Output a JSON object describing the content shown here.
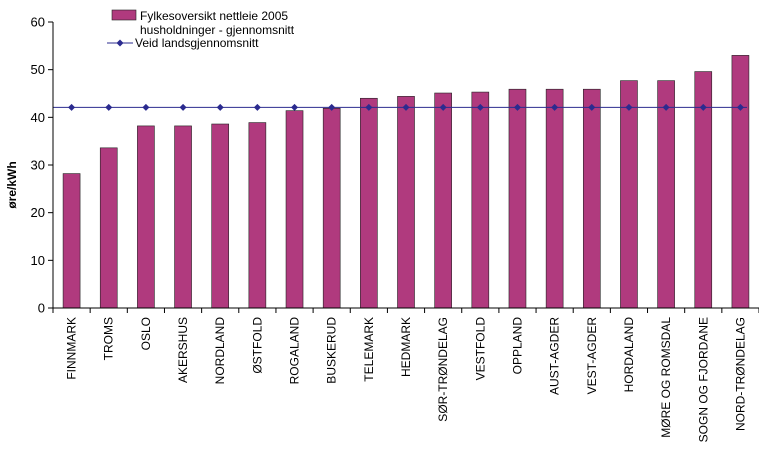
{
  "chart_data": {
    "type": "bar",
    "title": "",
    "xlabel": "",
    "ylabel": "øre/kWh",
    "ylim": [
      0,
      60
    ],
    "yticks": [
      0,
      10,
      20,
      30,
      40,
      50,
      60
    ],
    "grid": false,
    "legend_position": "top-center",
    "categories": [
      "FINNMARK",
      "TROMS",
      "OSLO",
      "AKERSHUS",
      "NORDLAND",
      "ØSTFOLD",
      "ROGALAND",
      "BUSKERUD",
      "TELEMARK",
      "HEDMARK",
      "SØR-TRØNDELAG",
      "VESTFOLD",
      "OPPLAND",
      "AUST-AGDER",
      "VEST-AGDER",
      "HORDALAND",
      "MØRE OG ROMSDAL",
      "SOGN OG FJORDANE",
      "NORD-TRØNDELAG"
    ],
    "series": [
      {
        "name": "Fylkesoversikt nettleie 2005 husholdninger - gjennomsnitt",
        "legend_lines": [
          "Fylkesoversikt nettleie 2005",
          "husholdninger - gjennomsnitt"
        ],
        "type": "bar",
        "color": "#b03a7e",
        "values": [
          28.2,
          33.6,
          38.2,
          38.2,
          38.6,
          38.9,
          41.4,
          41.9,
          44.0,
          44.4,
          45.1,
          45.3,
          45.9,
          45.9,
          45.9,
          47.7,
          47.7,
          49.6,
          53.0
        ]
      },
      {
        "name": "Veid landsgjennomsnitt",
        "legend_lines": [
          "Veid landsgjennomsnitt"
        ],
        "type": "line",
        "color": "#2b2b8f",
        "marker": "diamond",
        "values": [
          42.1,
          42.1,
          42.1,
          42.1,
          42.1,
          42.1,
          42.1,
          42.1,
          42.1,
          42.1,
          42.1,
          42.1,
          42.1,
          42.1,
          42.1,
          42.1,
          42.1,
          42.1,
          42.1
        ]
      }
    ]
  }
}
